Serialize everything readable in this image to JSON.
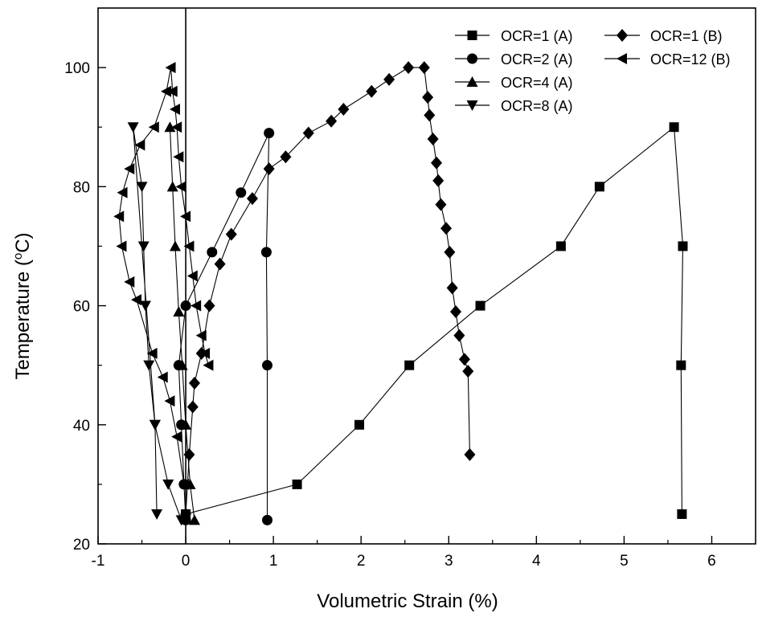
{
  "chart_data": {
    "type": "scatter",
    "xlabel": "Volumetric Strain (%)",
    "ylabel_prefix": "Temperature (",
    "ylabel_sup": "o",
    "ylabel_suffix": "C)",
    "xlim": [
      -1,
      6.5
    ],
    "ylim": [
      20,
      110
    ],
    "x_ticks": [
      -1,
      0,
      1,
      2,
      3,
      4,
      5,
      6
    ],
    "y_ticks": [
      20,
      40,
      60,
      80,
      100
    ],
    "x_tick_labels": [
      "-1",
      "0",
      "1",
      "2",
      "3",
      "4",
      "5",
      "6"
    ],
    "y_tick_labels": [
      "20",
      "40",
      "60",
      "80",
      "100"
    ],
    "zero_line_x": 0,
    "grid": false,
    "legend_position": "top-right",
    "series": [
      {
        "name": "OCR=1 (A)",
        "marker": "square",
        "x": [
          0.0,
          1.27,
          1.98,
          2.55,
          3.36,
          4.28,
          4.72,
          5.57,
          5.67,
          5.65,
          5.66
        ],
        "y": [
          25,
          30,
          40,
          50,
          60,
          70,
          80,
          90,
          70,
          50,
          25
        ]
      },
      {
        "name": "OCR=2 (A)",
        "marker": "circle",
        "x": [
          0.0,
          -0.02,
          -0.05,
          -0.08,
          0.0,
          0.3,
          0.63,
          0.95,
          0.92,
          0.93,
          0.93
        ],
        "y": [
          24,
          30,
          40,
          50,
          60,
          69,
          79,
          89,
          69,
          50,
          24
        ]
      },
      {
        "name": "OCR=4 (A)",
        "marker": "triangle-up",
        "x": [
          0.1,
          0.05,
          0.0,
          -0.04,
          -0.08,
          -0.12,
          -0.15,
          -0.18
        ],
        "y": [
          24,
          30,
          40,
          50,
          59,
          70,
          80,
          90
        ]
      },
      {
        "name": "OCR=8 (A)",
        "marker": "triangle-down",
        "x": [
          -0.05,
          -0.2,
          -0.35,
          -0.42,
          -0.46,
          -0.48,
          -0.5,
          -0.6,
          -0.35,
          -0.33
        ],
        "y": [
          24,
          30,
          40,
          50,
          60,
          70,
          80,
          90,
          40,
          25
        ]
      },
      {
        "name": "OCR=1 (B)",
        "marker": "diamond",
        "x": [
          0.0,
          0.04,
          0.08,
          0.1,
          0.18,
          0.27,
          0.39,
          0.52,
          0.76,
          0.95,
          1.14,
          1.4,
          1.66,
          1.8,
          2.12,
          2.32,
          2.54,
          2.72,
          2.76,
          2.78,
          2.82,
          2.86,
          2.88,
          2.91,
          2.97,
          3.01,
          3.04,
          3.08,
          3.12,
          3.18,
          3.22,
          3.24
        ],
        "y": [
          25,
          35,
          43,
          47,
          52,
          60,
          67,
          72,
          78,
          83,
          85,
          89,
          91,
          93,
          96,
          98,
          100,
          100,
          95,
          92,
          88,
          84,
          81,
          77,
          73,
          69,
          63,
          59,
          55,
          51,
          49,
          35
        ]
      },
      {
        "name": "OCR=12 (B)",
        "marker": "triangle-left",
        "x": [
          -0.02,
          -0.1,
          -0.18,
          -0.26,
          -0.38,
          -0.56,
          -0.64,
          -0.73,
          -0.76,
          -0.72,
          -0.64,
          -0.52,
          -0.36,
          -0.22,
          -0.17,
          -0.15,
          -0.12,
          -0.1,
          -0.08,
          -0.05,
          0.0,
          0.04,
          0.08,
          0.12,
          0.18,
          0.22,
          0.26
        ],
        "y": [
          30,
          38,
          44,
          48,
          52,
          61,
          64,
          70,
          75,
          79,
          83,
          87,
          90,
          96,
          100,
          96,
          93,
          90,
          85,
          80,
          75,
          70,
          65,
          60,
          55,
          52,
          50
        ]
      }
    ]
  }
}
